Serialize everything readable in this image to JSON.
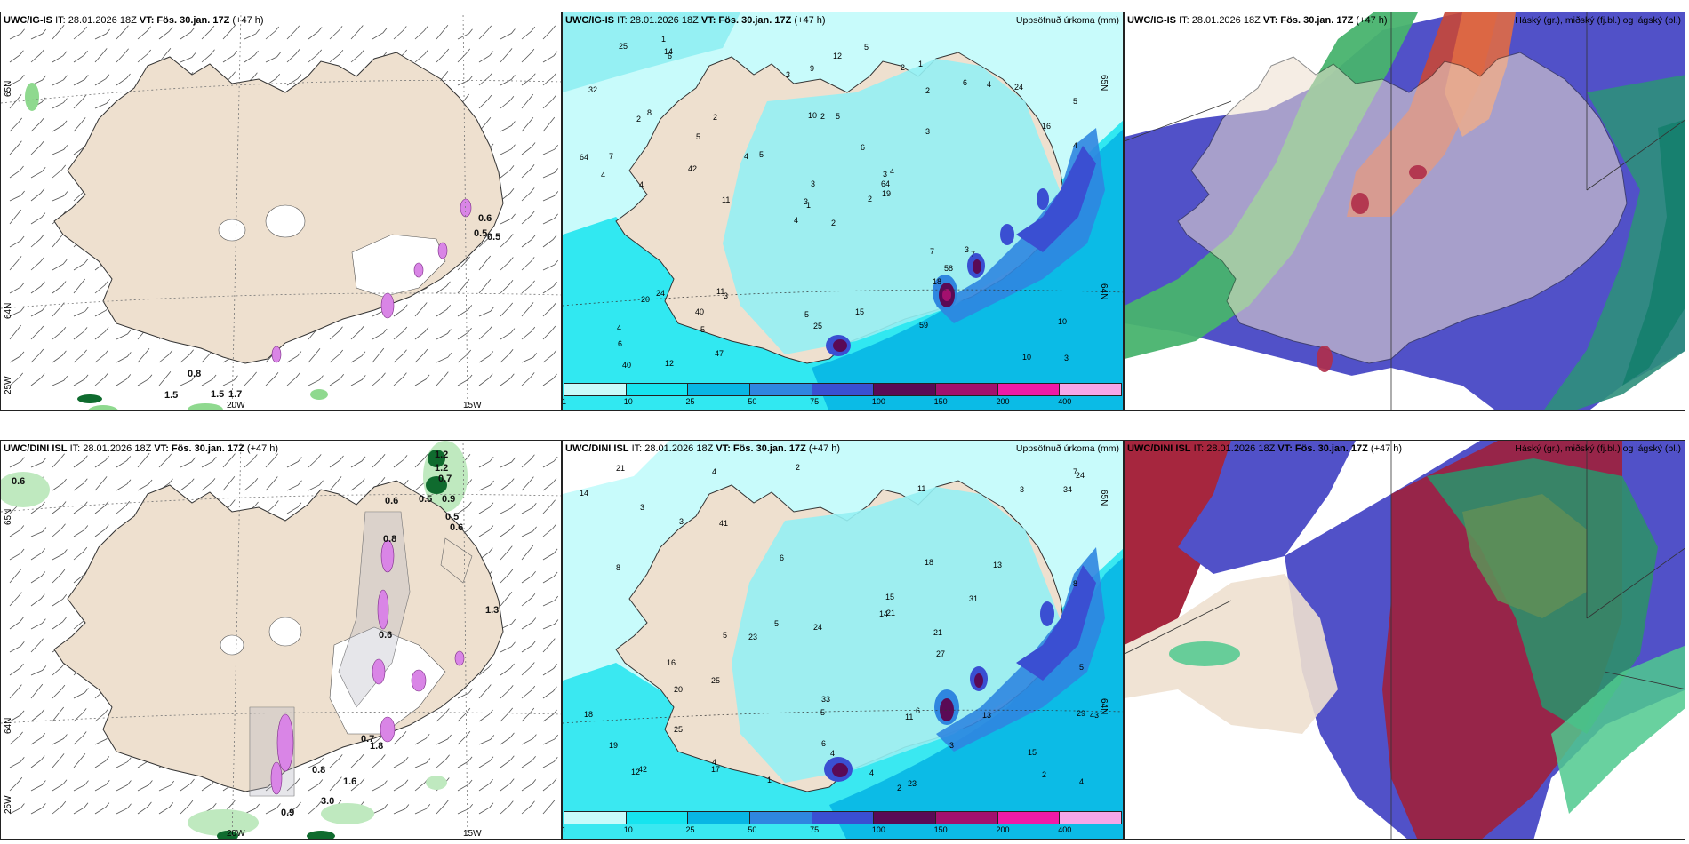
{
  "panels": {
    "top_wind": {
      "model": "UWC/IG-IS",
      "header_rest": "IT: 28.01.2026 18Z ",
      "vt": "VT: Fös. 30.jan. 17Z",
      "lead": " (+47 h)",
      "right_title": ""
    },
    "top_precip": {
      "model": "UWC/IG-IS",
      "header_rest": "IT: 28.01.2026 18Z ",
      "vt": "VT: Fös. 30.jan. 17Z",
      "lead": " (+47 h)",
      "right_title": "Uppsöfnuð úrkoma (mm)"
    },
    "top_cloud": {
      "model": "UWC/IG-IS",
      "header_rest": "IT: 28.01.2026 18Z ",
      "vt": "VT: Fös. 30.jan. 17Z",
      "lead": " (+47 h)",
      "right_title": "Háský (gr.), miðský (fj.bl.) og lágský (bl.)"
    },
    "bot_wind": {
      "model": "UWC/DINI ISL",
      "header_rest": "IT: 28.01.2026 18Z ",
      "vt": "VT: Fös. 30.jan. 17Z",
      "lead": " (+47 h)",
      "right_title": ""
    },
    "bot_precip": {
      "model": "UWC/DINI ISL",
      "header_rest": "IT: 28.01.2026 18Z ",
      "vt": "VT: Fös. 30.jan. 17Z",
      "lead": " (+47 h)",
      "right_title": "Uppsöfnuð úrkoma (mm)"
    },
    "bot_cloud": {
      "model": "UWC/DINI ISL",
      "header_rest": "IT: 28.01.2026 18Z ",
      "vt": "VT: Fös. 30.jan. 17Z",
      "lead": " (+47 h)",
      "right_title": "Háský (gr.), miðský (fj.bl.) og lágský (bl.)"
    }
  },
  "precip_legend": {
    "ticks": [
      "1",
      "10",
      "25",
      "50",
      "75",
      "100",
      "150",
      "200",
      "400"
    ],
    "colors": [
      "#c8fbfb",
      "#16e4ef",
      "#08b6e4",
      "#2f86e0",
      "#3a4fd2",
      "#5a0a55",
      "#a3106e",
      "#ef1aa6",
      "#f6a6e8"
    ]
  },
  "grid_labels": {
    "top_wind": {
      "lat_a": "65N",
      "lat_b": "64N",
      "lon_a": "20W",
      "lon_b": "15W",
      "lon_c": "25W"
    },
    "bot_wind": {
      "lat_a": "65N",
      "lat_b": "64N",
      "lon_a": "20W",
      "lon_b": "15W",
      "lon_c": "25W"
    },
    "top_precip": {
      "lat_a": "65N",
      "lat_b": "64N"
    },
    "bot_precip": {
      "lat_a": "65N",
      "lat_b": "64N"
    }
  },
  "wind_values": {
    "top": [
      "0.6",
      "0.5",
      "0.5",
      "0.8",
      "1.5",
      "1.5",
      "1.7"
    ],
    "bot": [
      "0.6",
      "1.2",
      "1.2",
      "0.7",
      "0.5",
      "0.9",
      "0.6",
      "0.5",
      "0.6",
      "0.8",
      "1.3",
      "0.6",
      "0.7",
      "1.8",
      "0.8",
      "1.6",
      "3.0",
      "0.9"
    ]
  },
  "precip_values": {
    "top": [
      "2",
      "2",
      "1",
      "4",
      "3",
      "3",
      "1",
      "5",
      "2",
      "2",
      "6",
      "3",
      "4",
      "5",
      "4",
      "3",
      "12",
      "10",
      "6",
      "24",
      "5",
      "6",
      "5",
      "2",
      "4",
      "7",
      "8",
      "9",
      "4",
      "7",
      "4",
      "3",
      "5",
      "3",
      "2",
      "6",
      "11",
      "10",
      "10",
      "3",
      "5",
      "4",
      "42",
      "18",
      "47",
      "64",
      "64",
      "40",
      "25",
      "19",
      "20",
      "16",
      "32",
      "58",
      "59",
      "40",
      "14",
      "25",
      "15",
      "24",
      "12",
      "11",
      "7",
      "5",
      "4",
      "1",
      "2",
      "3"
    ],
    "bot": [
      "1",
      "2",
      "4",
      "3",
      "4",
      "3",
      "5",
      "2",
      "2",
      "6",
      "3",
      "4",
      "5",
      "5",
      "11",
      "14",
      "8",
      "17",
      "23",
      "14",
      "11",
      "24",
      "15",
      "12",
      "13",
      "16",
      "18",
      "20",
      "21",
      "27",
      "24",
      "23",
      "33",
      "34",
      "25",
      "21",
      "29",
      "19",
      "18",
      "15",
      "21",
      "31",
      "43",
      "42",
      "41",
      "6",
      "5",
      "4",
      "3",
      "6",
      "7",
      "8",
      "4",
      "13",
      "25"
    ]
  },
  "colors": {
    "land": "#eee0cf",
    "coast": "#333333",
    "cloud_high": "#4fc98e",
    "cloud_mid": "#b02e49",
    "cloud_low": "#4f4fc9"
  }
}
